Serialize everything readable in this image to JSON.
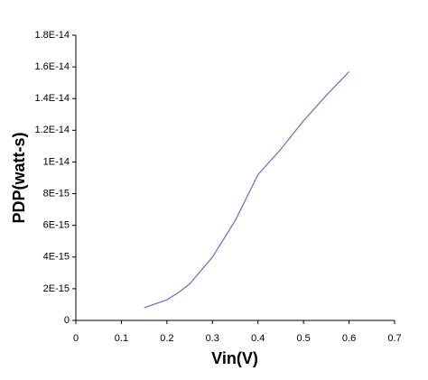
{
  "chart_data": {
    "type": "line",
    "x_label": "Vin(V)",
    "y_label": "PDP(watt-s)",
    "x": [
      0.15,
      0.2,
      0.225,
      0.25,
      0.3,
      0.35,
      0.4,
      0.45,
      0.5,
      0.55,
      0.6
    ],
    "series": [
      {
        "color": "#6b6bc8",
        "values": [
          8e-16,
          1.3e-15,
          1.75e-15,
          2.3e-15,
          4e-15,
          6.3e-15,
          9.2e-15,
          1.08e-14,
          1.26e-14,
          1.42e-14,
          1.57e-14
        ]
      }
    ],
    "xlim": [
      0,
      0.7
    ],
    "xticks": [
      0,
      0.1,
      0.2,
      0.3,
      0.4,
      0.5,
      0.6,
      0.7
    ],
    "ylim": [
      0,
      1.8e-14
    ],
    "yticks": [
      0,
      {
        "value": 2e-15,
        "label": "2E-15"
      },
      {
        "value": 4e-15,
        "label": "4E-15"
      },
      {
        "value": 6e-15,
        "label": "6E-15"
      },
      {
        "value": 8e-15,
        "label": "8E-15"
      },
      {
        "value": 1e-14,
        "label": "1E-14"
      },
      {
        "value": 1.2e-14,
        "label": "1.2E-14"
      },
      {
        "value": 1.4e-14,
        "label": "1.4E-14"
      },
      {
        "value": 1.6e-14,
        "label": "1.6E-14"
      },
      {
        "value": 1.8e-14,
        "label": "1.8E-14"
      }
    ],
    "grid": false
  }
}
